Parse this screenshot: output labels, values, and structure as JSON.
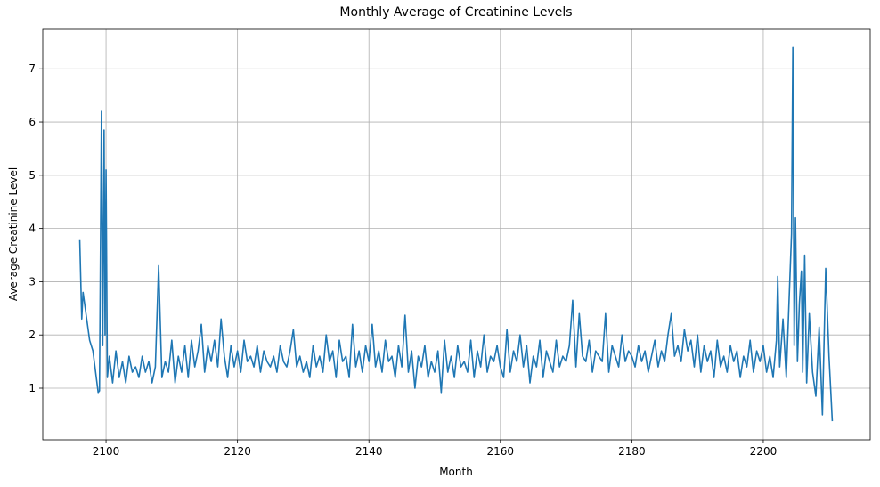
{
  "chart_data": {
    "type": "line",
    "title": "Monthly Average of Creatinine Levels",
    "xlabel": "Month",
    "ylabel": "Average Creatinine Level",
    "color": "#1f77b4",
    "grid": true,
    "xlim": [
      2090.37,
      2216.27
    ],
    "xticks": [
      2100,
      2120,
      2140,
      2160,
      2180,
      2200
    ],
    "ylim": [
      0.03,
      7.74
    ],
    "yticks": [
      1,
      2,
      3,
      4,
      5,
      6,
      7
    ],
    "x": [
      2096.0,
      2096.3,
      2096.5,
      2097.5,
      2098.0,
      2098.8,
      2099.0,
      2099.3,
      2099.5,
      2099.7,
      2099.85,
      2100.0,
      2100.2,
      2100.5,
      2101,
      2101.5,
      2102,
      2102.5,
      2103,
      2103.5,
      2104,
      2104.5,
      2105,
      2105.5,
      2106,
      2106.5,
      2107,
      2107.5,
      2108,
      2108.5,
      2109,
      2109.5,
      2110,
      2110.5,
      2111,
      2111.5,
      2112,
      2112.5,
      2113,
      2113.5,
      2114,
      2114.5,
      2115,
      2115.5,
      2116,
      2116.5,
      2117,
      2117.5,
      2118,
      2118.5,
      2119,
      2119.5,
      2120,
      2120.5,
      2121,
      2121.5,
      2122,
      2122.5,
      2123,
      2123.5,
      2124,
      2124.5,
      2125,
      2125.5,
      2126,
      2126.5,
      2127,
      2127.5,
      2128,
      2128.5,
      2129,
      2129.5,
      2130,
      2130.5,
      2131,
      2131.5,
      2132,
      2132.5,
      2133,
      2133.5,
      2134,
      2134.5,
      2135,
      2135.5,
      2136,
      2136.5,
      2137,
      2137.5,
      2138,
      2138.5,
      2139,
      2139.5,
      2140,
      2140.5,
      2141,
      2141.5,
      2142,
      2142.5,
      2143,
      2143.5,
      2144,
      2144.5,
      2145,
      2145.5,
      2146,
      2146.5,
      2147,
      2147.5,
      2148,
      2148.5,
      2149,
      2149.5,
      2150,
      2150.5,
      2151,
      2151.5,
      2152,
      2152.5,
      2153,
      2153.5,
      2154,
      2154.5,
      2155,
      2155.5,
      2156,
      2156.5,
      2157,
      2157.5,
      2158,
      2158.5,
      2159,
      2159.5,
      2160,
      2160.5,
      2161,
      2161.5,
      2162,
      2162.5,
      2163,
      2163.5,
      2164,
      2164.5,
      2165,
      2165.5,
      2166,
      2166.5,
      2167,
      2167.5,
      2168,
      2168.5,
      2169,
      2169.5,
      2170,
      2170.5,
      2171,
      2171.5,
      2172,
      2172.5,
      2173,
      2173.5,
      2174,
      2174.5,
      2175,
      2175.5,
      2176,
      2176.5,
      2177,
      2177.5,
      2178,
      2178.5,
      2179,
      2179.5,
      2180,
      2180.5,
      2181,
      2181.5,
      2182,
      2182.5,
      2183,
      2183.5,
      2184,
      2184.5,
      2185,
      2185.5,
      2186,
      2186.5,
      2187,
      2187.5,
      2188,
      2188.5,
      2189,
      2189.5,
      2190,
      2190.5,
      2191,
      2191.5,
      2192,
      2192.5,
      2193,
      2193.5,
      2194,
      2194.5,
      2195,
      2195.5,
      2196,
      2196.5,
      2197,
      2197.5,
      2198,
      2198.5,
      2199,
      2199.5,
      2200,
      2200.5,
      2201,
      2201.5,
      2202,
      2202.2,
      2202.5,
      2203,
      2203.5,
      2204,
      2204.3,
      2204.5,
      2204.7,
      2204.9,
      2205.2,
      2205.5,
      2205.8,
      2206,
      2206.3,
      2206.6,
      2207,
      2207.5,
      2208,
      2208.5,
      2209,
      2209.5,
      2210,
      2210.5
    ],
    "values": [
      3.78,
      2.3,
      2.8,
      1.9,
      1.7,
      0.92,
      0.95,
      6.2,
      1.8,
      5.85,
      2.0,
      5.1,
      1.2,
      1.6,
      1.1,
      1.7,
      1.2,
      1.5,
      1.1,
      1.6,
      1.3,
      1.4,
      1.2,
      1.6,
      1.3,
      1.5,
      1.1,
      1.4,
      3.3,
      1.2,
      1.5,
      1.3,
      1.9,
      1.1,
      1.6,
      1.3,
      1.8,
      1.2,
      1.9,
      1.4,
      1.7,
      2.2,
      1.3,
      1.8,
      1.5,
      1.9,
      1.4,
      2.3,
      1.6,
      1.2,
      1.8,
      1.4,
      1.7,
      1.3,
      1.9,
      1.5,
      1.6,
      1.4,
      1.8,
      1.3,
      1.7,
      1.5,
      1.4,
      1.6,
      1.3,
      1.8,
      1.5,
      1.4,
      1.7,
      2.1,
      1.4,
      1.6,
      1.3,
      1.5,
      1.2,
      1.8,
      1.4,
      1.6,
      1.3,
      2.0,
      1.5,
      1.7,
      1.2,
      1.9,
      1.5,
      1.6,
      1.2,
      2.2,
      1.4,
      1.7,
      1.3,
      1.8,
      1.5,
      2.2,
      1.4,
      1.7,
      1.3,
      1.9,
      1.5,
      1.6,
      1.2,
      1.8,
      1.4,
      2.37,
      1.3,
      1.7,
      1.0,
      1.6,
      1.4,
      1.8,
      1.2,
      1.5,
      1.3,
      1.7,
      0.92,
      1.9,
      1.3,
      1.6,
      1.2,
      1.8,
      1.4,
      1.5,
      1.3,
      1.9,
      1.2,
      1.7,
      1.4,
      2.0,
      1.3,
      1.6,
      1.5,
      1.8,
      1.4,
      1.2,
      2.1,
      1.3,
      1.7,
      1.5,
      2.0,
      1.4,
      1.8,
      1.1,
      1.6,
      1.4,
      1.9,
      1.2,
      1.7,
      1.5,
      1.3,
      1.9,
      1.4,
      1.6,
      1.5,
      1.8,
      2.65,
      1.4,
      2.4,
      1.6,
      1.5,
      1.9,
      1.3,
      1.7,
      1.6,
      1.5,
      2.4,
      1.3,
      1.8,
      1.6,
      1.4,
      2.0,
      1.5,
      1.7,
      1.6,
      1.4,
      1.8,
      1.5,
      1.7,
      1.3,
      1.6,
      1.9,
      1.4,
      1.7,
      1.5,
      2.0,
      2.4,
      1.6,
      1.8,
      1.5,
      2.1,
      1.7,
      1.9,
      1.4,
      2.0,
      1.3,
      1.8,
      1.5,
      1.7,
      1.2,
      1.9,
      1.4,
      1.6,
      1.3,
      1.8,
      1.5,
      1.7,
      1.2,
      1.6,
      1.4,
      1.9,
      1.3,
      1.7,
      1.5,
      1.8,
      1.3,
      1.6,
      1.2,
      1.9,
      3.1,
      1.4,
      2.3,
      1.2,
      2.9,
      3.9,
      7.4,
      1.8,
      4.2,
      1.5,
      2.6,
      3.2,
      1.3,
      3.5,
      1.1,
      2.4,
      1.3,
      0.85,
      2.15,
      0.5,
      3.25,
      1.6,
      0.38
    ]
  }
}
